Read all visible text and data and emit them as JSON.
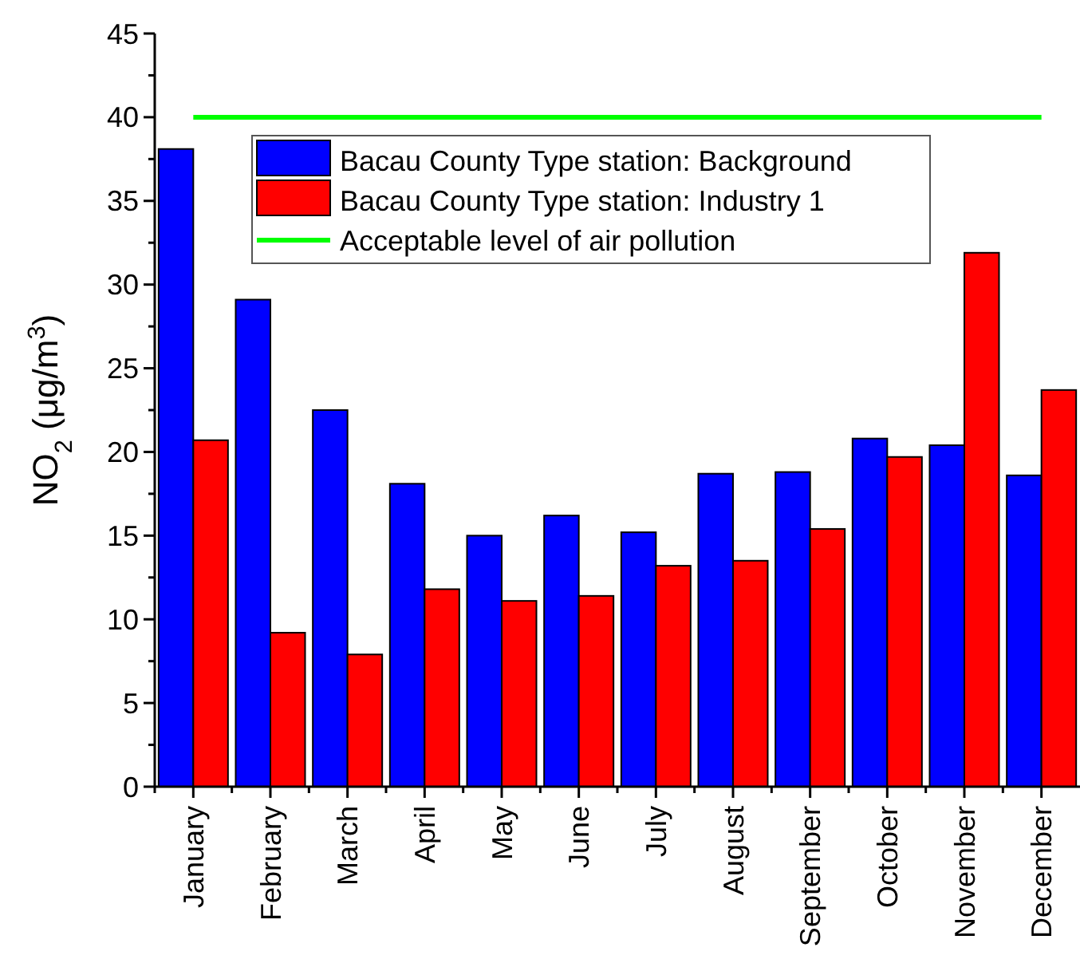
{
  "chart_data": {
    "type": "bar",
    "ylabel": "NO$_{2}$ (μg/m$^{3}$)",
    "categories": [
      "January",
      "February",
      "March",
      "April",
      "May",
      "June",
      "July",
      "August",
      "September",
      "October",
      "November",
      "December"
    ],
    "series": [
      {
        "name": "Bacau County Type station: Background",
        "color": "#0000ff",
        "values": [
          38.1,
          29.1,
          22.5,
          18.1,
          15.0,
          16.2,
          15.2,
          18.7,
          18.8,
          20.8,
          20.4,
          18.6
        ]
      },
      {
        "name": "Bacau County Type station: Industry 1",
        "color": "#ff0000",
        "values": [
          20.7,
          9.2,
          7.9,
          11.8,
          11.1,
          11.4,
          13.2,
          13.5,
          15.4,
          19.7,
          31.9,
          23.7
        ]
      },
      {
        "name": "Acceptable level of air pollution",
        "color": "#00ff00",
        "type": "line",
        "values": [
          40,
          40,
          40,
          40,
          40,
          40,
          40,
          40,
          40,
          40,
          40,
          40
        ]
      }
    ],
    "ylim": [
      0,
      45
    ],
    "yticks": [
      0,
      5,
      10,
      15,
      20,
      25,
      30,
      35,
      40,
      45
    ],
    "legend": "top",
    "grid": false
  }
}
